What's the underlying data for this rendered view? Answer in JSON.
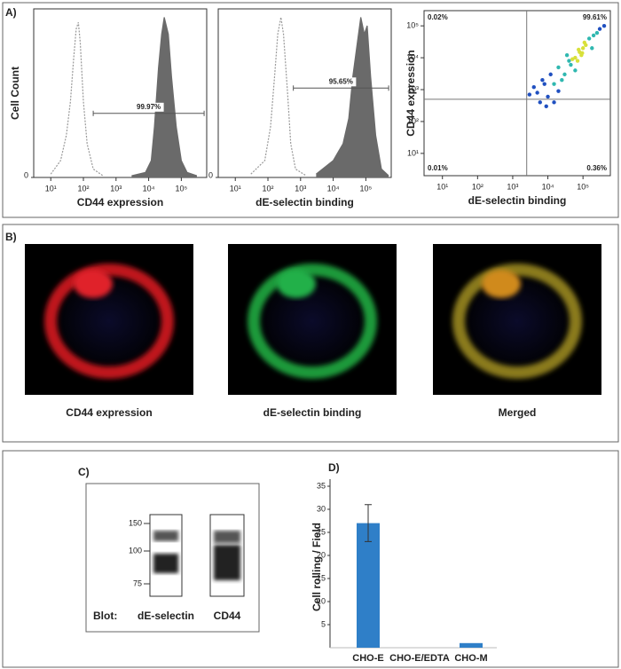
{
  "panel_labels": [
    "A)",
    "B)",
    "C)",
    "D)"
  ],
  "chart_data": [
    {
      "type": "line",
      "xlabel": "CD44 expression",
      "ylabel": "Cell Count",
      "log_x": true,
      "xlim": [
        3,
        600000
      ],
      "ylim": [
        0,
        100
      ],
      "xticks": [
        {
          "value": 10,
          "label": "10¹"
        },
        {
          "value": 100,
          "label": "10²"
        },
        {
          "value": 1000,
          "label": "10³"
        },
        {
          "value": 10000,
          "label": "10⁴"
        },
        {
          "value": 100000,
          "label": "10⁵"
        }
      ],
      "yticks": [
        0
      ],
      "series": [
        {
          "style": "dotted",
          "color": "#999999",
          "x": [
            10,
            20,
            30,
            40,
            50,
            60,
            70,
            80,
            100,
            130,
            200,
            400
          ],
          "values": [
            2,
            10,
            25,
            45,
            70,
            88,
            92,
            80,
            45,
            20,
            5,
            1
          ]
        },
        {
          "style": "filled",
          "color": "#6a6a6a",
          "x": [
            3000,
            8000,
            12000,
            15000,
            20000,
            25000,
            30000,
            40000,
            50000,
            70000,
            100000,
            150000,
            300000
          ],
          "values": [
            1,
            3,
            10,
            30,
            65,
            85,
            95,
            85,
            60,
            30,
            10,
            3,
            1
          ]
        }
      ],
      "gate": {
        "x": [
          200,
          500000
        ],
        "y": 38,
        "label": "99.97%"
      }
    },
    {
      "type": "line",
      "xlabel": "dE-selectin binding",
      "log_x": true,
      "xlim": [
        3,
        600000
      ],
      "ylim": [
        0,
        100
      ],
      "xticks": [
        {
          "value": 10,
          "label": "10¹"
        },
        {
          "value": 100,
          "label": "10²"
        },
        {
          "value": 1000,
          "label": "10³"
        },
        {
          "value": 10000,
          "label": "10⁴"
        },
        {
          "value": 100000,
          "label": "10⁵"
        }
      ],
      "yticks": [
        0
      ],
      "series": [
        {
          "style": "dotted",
          "color": "#999999",
          "x": [
            30,
            80,
            120,
            160,
            200,
            250,
            300,
            400,
            500,
            700,
            1500
          ],
          "values": [
            2,
            10,
            30,
            60,
            85,
            95,
            85,
            50,
            20,
            5,
            1
          ]
        },
        {
          "style": "filled",
          "color": "#6a6a6a",
          "x": [
            3000,
            10000,
            20000,
            30000,
            40000,
            55000,
            70000,
            90000,
            110000,
            140000,
            200000,
            300000,
            500000
          ],
          "values": [
            2,
            10,
            20,
            35,
            60,
            80,
            95,
            85,
            90,
            60,
            25,
            5,
            1
          ]
        }
      ],
      "gate": {
        "x": [
          600,
          500000
        ],
        "y": 53,
        "label": "95.65%"
      }
    },
    {
      "type": "scatter",
      "xlabel": "dE-selectin binding",
      "ylabel": "CD44 expression",
      "log_x": true,
      "log_y": true,
      "xlim": [
        3,
        600000
      ],
      "ylim": [
        2,
        300000
      ],
      "xticks": [
        {
          "value": 10,
          "label": "10¹"
        },
        {
          "value": 100,
          "label": "10²"
        },
        {
          "value": 1000,
          "label": "10³"
        },
        {
          "value": 10000,
          "label": "10⁴"
        },
        {
          "value": 100000,
          "label": "10⁵"
        }
      ],
      "yticks": [
        {
          "value": 10,
          "label": "10¹"
        },
        {
          "value": 100,
          "label": "10²"
        },
        {
          "value": 1000,
          "label": "10³"
        },
        {
          "value": 10000,
          "label": "10⁴"
        },
        {
          "value": 100000,
          "label": "10⁵"
        }
      ],
      "quadrant_lines": {
        "x": 2500,
        "y": 500
      },
      "quadrant_labels": [
        "0.02%",
        "99.61%",
        "0.01%",
        "0.36%"
      ],
      "series": [
        {
          "color": "#2050c0",
          "x": [
            5000,
            8000,
            10000,
            12000,
            3000,
            6000,
            400000,
            300000,
            7000,
            20000,
            4000,
            15000,
            9000
          ],
          "values": [
            800,
            1500,
            600,
            3000,
            700,
            400,
            100000,
            80000,
            2000,
            900,
            1200,
            400,
            300
          ]
        },
        {
          "color": "#30b8b0",
          "x": [
            20000,
            30000,
            40000,
            150000,
            200000,
            25000,
            35000,
            60000,
            180000,
            45000,
            250000,
            15000
          ],
          "values": [
            5000,
            3000,
            8000,
            40000,
            50000,
            2000,
            12000,
            4000,
            20000,
            6000,
            60000,
            1500
          ]
        },
        {
          "color": "#d8e03a",
          "x": [
            60000,
            80000,
            100000,
            70000,
            120000,
            90000,
            50000,
            110000,
            75000,
            95000
          ],
          "values": [
            10000,
            15000,
            20000,
            8000,
            25000,
            12000,
            9000,
            30000,
            18000,
            14000
          ]
        }
      ]
    },
    {
      "type": "bar",
      "ylabel": "Cell rolling / Field",
      "color": "#2f7fc8",
      "categories": [
        "CHO-E",
        "CHO-E/EDTA",
        "CHO-M"
      ],
      "values": [
        27,
        0,
        1
      ],
      "errors": [
        4,
        0,
        0
      ],
      "ylim": [
        0,
        35
      ],
      "yticks": [
        5,
        10,
        15,
        20,
        25,
        30,
        35
      ]
    }
  ],
  "images": {
    "captions": [
      "CD44 expression",
      "dE-selectin binding",
      "Merged"
    ]
  },
  "blot": {
    "markers": [
      150,
      100,
      75
    ],
    "prefix": "Blot:",
    "lanes": [
      "dE-selectin",
      "CD44"
    ]
  }
}
